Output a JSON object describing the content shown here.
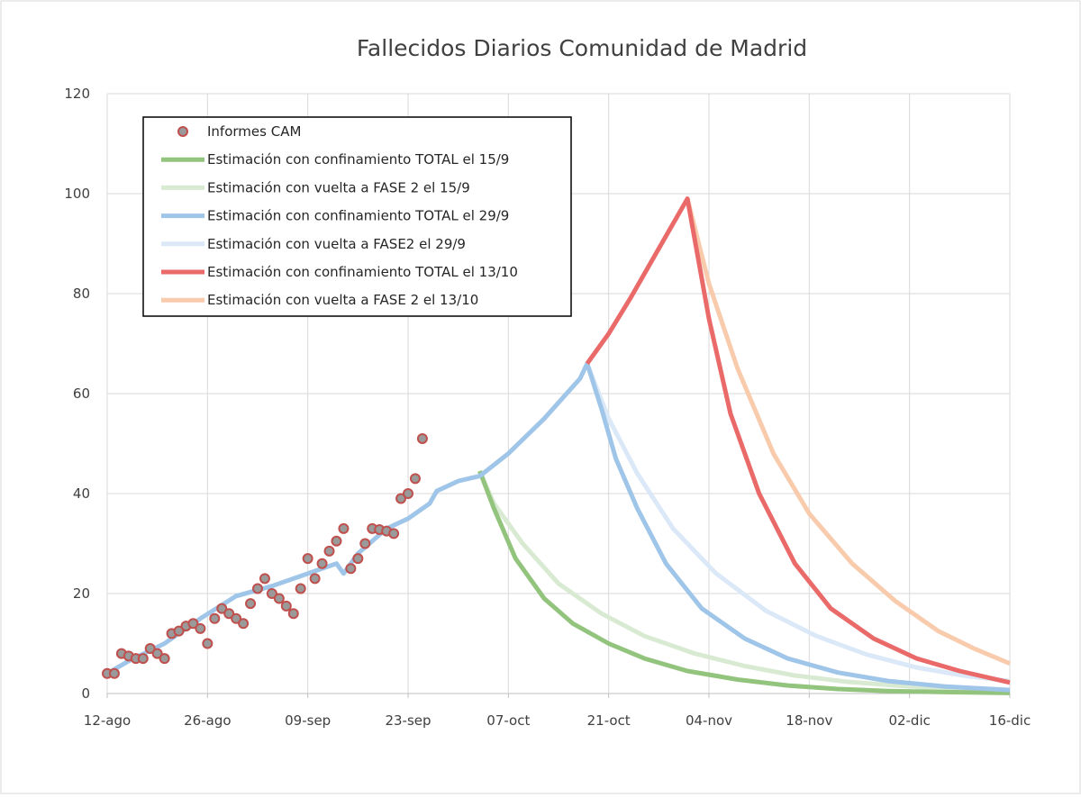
{
  "chart_data": {
    "type": "line",
    "title": "Fallecidos Diarios Comunidad de Madrid",
    "xlabel": "",
    "ylabel": "",
    "ylim": [
      0,
      120
    ],
    "yticks": [
      0,
      20,
      40,
      60,
      80,
      100,
      120
    ],
    "xlim": [
      "2020-08-12",
      "2020-12-16"
    ],
    "xticks": [
      "2020-08-12",
      "2020-08-26",
      "2020-09-09",
      "2020-09-23",
      "2020-10-07",
      "2020-10-21",
      "2020-11-04",
      "2020-11-18",
      "2020-12-02",
      "2020-12-16"
    ],
    "xtick_labels": [
      "12-ago",
      "26-ago",
      "09-sep",
      "23-sep",
      "07-oct",
      "21-oct",
      "04-nov",
      "18-nov",
      "02-dic",
      "16-dic"
    ],
    "grid": true,
    "legend_position": "top-left",
    "series": [
      {
        "name": "Informes CAM",
        "kind": "scatter",
        "color": "#c0504d",
        "fill": "#9a9a9a",
        "points": [
          [
            "2020-08-12",
            4
          ],
          [
            "2020-08-13",
            4
          ],
          [
            "2020-08-14",
            8
          ],
          [
            "2020-08-15",
            7.5
          ],
          [
            "2020-08-16",
            7
          ],
          [
            "2020-08-17",
            7
          ],
          [
            "2020-08-18",
            9
          ],
          [
            "2020-08-19",
            8
          ],
          [
            "2020-08-20",
            7
          ],
          [
            "2020-08-21",
            12
          ],
          [
            "2020-08-22",
            12.5
          ],
          [
            "2020-08-23",
            13.5
          ],
          [
            "2020-08-24",
            14
          ],
          [
            "2020-08-25",
            13
          ],
          [
            "2020-08-26",
            10
          ],
          [
            "2020-08-27",
            15
          ],
          [
            "2020-08-28",
            17
          ],
          [
            "2020-08-29",
            16
          ],
          [
            "2020-08-30",
            15
          ],
          [
            "2020-08-31",
            14
          ],
          [
            "2020-09-01",
            18
          ],
          [
            "2020-09-02",
            21
          ],
          [
            "2020-09-03",
            23
          ],
          [
            "2020-09-04",
            20
          ],
          [
            "2020-09-05",
            19
          ],
          [
            "2020-09-06",
            17.5
          ],
          [
            "2020-09-07",
            16
          ],
          [
            "2020-09-08",
            21
          ],
          [
            "2020-09-09",
            27
          ],
          [
            "2020-09-10",
            23
          ],
          [
            "2020-09-11",
            26
          ],
          [
            "2020-09-12",
            28.5
          ],
          [
            "2020-09-13",
            30.5
          ],
          [
            "2020-09-14",
            33
          ],
          [
            "2020-09-15",
            25
          ],
          [
            "2020-09-16",
            27
          ],
          [
            "2020-09-17",
            30
          ],
          [
            "2020-09-18",
            33
          ],
          [
            "2020-09-19",
            32.8
          ],
          [
            "2020-09-20",
            32.5
          ],
          [
            "2020-09-21",
            32
          ],
          [
            "2020-09-22",
            39
          ],
          [
            "2020-09-23",
            40
          ],
          [
            "2020-09-24",
            43
          ],
          [
            "2020-09-25",
            51
          ]
        ]
      },
      {
        "name": "Estimación con confinamiento TOTAL el 15/9",
        "kind": "line",
        "color": "#93c47d",
        "points": [
          [
            "2020-10-03",
            44.5
          ],
          [
            "2020-10-05",
            37
          ],
          [
            "2020-10-08",
            27
          ],
          [
            "2020-10-12",
            19
          ],
          [
            "2020-10-16",
            14
          ],
          [
            "2020-10-21",
            10
          ],
          [
            "2020-10-26",
            7
          ],
          [
            "2020-11-01",
            4.5
          ],
          [
            "2020-11-08",
            2.8
          ],
          [
            "2020-11-15",
            1.6
          ],
          [
            "2020-11-22",
            0.9
          ],
          [
            "2020-11-29",
            0.5
          ],
          [
            "2020-12-06",
            0.3
          ],
          [
            "2020-12-16",
            0.1
          ]
        ]
      },
      {
        "name": "Estimación con vuelta a FASE 2 el 15/9",
        "kind": "line",
        "color": "#d9ead3",
        "points": [
          [
            "2020-10-03",
            44.5
          ],
          [
            "2020-10-05",
            38
          ],
          [
            "2020-10-09",
            30
          ],
          [
            "2020-10-14",
            22
          ],
          [
            "2020-10-20",
            16
          ],
          [
            "2020-10-26",
            11.5
          ],
          [
            "2020-11-02",
            8
          ],
          [
            "2020-11-09",
            5.5
          ],
          [
            "2020-11-16",
            3.6
          ],
          [
            "2020-11-23",
            2.4
          ],
          [
            "2020-11-30",
            1.6
          ],
          [
            "2020-12-07",
            1.0
          ],
          [
            "2020-12-16",
            0.6
          ]
        ]
      },
      {
        "name": "Estimación con confinamiento TOTAL el 29/9",
        "kind": "line",
        "color": "#9fc5e8",
        "points": [
          [
            "2020-08-12",
            4
          ],
          [
            "2020-08-15",
            6.5
          ],
          [
            "2020-08-20",
            10
          ],
          [
            "2020-08-25",
            15
          ],
          [
            "2020-08-30",
            19.5
          ],
          [
            "2020-09-04",
            21.5
          ],
          [
            "2020-09-08",
            23.5
          ],
          [
            "2020-09-13",
            26
          ],
          [
            "2020-09-14",
            24
          ],
          [
            "2020-09-16",
            28
          ],
          [
            "2020-09-20",
            33
          ],
          [
            "2020-09-23",
            35
          ],
          [
            "2020-09-26",
            38
          ],
          [
            "2020-09-27",
            40.5
          ],
          [
            "2020-09-30",
            42.5
          ],
          [
            "2020-10-03",
            43.5
          ],
          [
            "2020-10-07",
            48
          ],
          [
            "2020-10-12",
            55
          ],
          [
            "2020-10-17",
            63
          ],
          [
            "2020-10-18",
            66
          ],
          [
            "2020-10-20",
            57
          ],
          [
            "2020-10-22",
            47
          ],
          [
            "2020-10-25",
            37
          ],
          [
            "2020-10-29",
            26
          ],
          [
            "2020-11-03",
            17
          ],
          [
            "2020-11-09",
            11
          ],
          [
            "2020-11-15",
            7
          ],
          [
            "2020-11-22",
            4.2
          ],
          [
            "2020-11-29",
            2.5
          ],
          [
            "2020-12-07",
            1.4
          ],
          [
            "2020-12-16",
            0.7
          ]
        ]
      },
      {
        "name": "Estimación con vuelta a FASE2 el 29/9",
        "kind": "line",
        "color": "#dbe8f7",
        "points": [
          [
            "2020-10-18",
            66
          ],
          [
            "2020-10-21",
            55
          ],
          [
            "2020-10-25",
            44
          ],
          [
            "2020-10-30",
            33
          ],
          [
            "2020-11-05",
            24
          ],
          [
            "2020-11-12",
            16.5
          ],
          [
            "2020-11-19",
            11.5
          ],
          [
            "2020-11-26",
            7.8
          ],
          [
            "2020-12-03",
            5.2
          ],
          [
            "2020-12-10",
            3.5
          ],
          [
            "2020-12-16",
            2.5
          ]
        ]
      },
      {
        "name": "Estimación con confinamiento TOTAL el 13/10",
        "kind": "line",
        "color": "#ea6a6a",
        "points": [
          [
            "2020-10-18",
            66
          ],
          [
            "2020-10-21",
            72
          ],
          [
            "2020-10-24",
            79
          ],
          [
            "2020-10-28",
            89
          ],
          [
            "2020-11-01",
            99
          ],
          [
            "2020-11-04",
            75
          ],
          [
            "2020-11-07",
            56
          ],
          [
            "2020-11-11",
            40
          ],
          [
            "2020-11-16",
            26
          ],
          [
            "2020-11-21",
            17
          ],
          [
            "2020-11-27",
            11
          ],
          [
            "2020-12-03",
            7
          ],
          [
            "2020-12-09",
            4.5
          ],
          [
            "2020-12-16",
            2.2
          ]
        ]
      },
      {
        "name": "Estimación con vuelta a FASE 2 el 13/10",
        "kind": "line",
        "color": "#f9cbad",
        "points": [
          [
            "2020-11-01",
            99
          ],
          [
            "2020-11-04",
            82
          ],
          [
            "2020-11-08",
            65
          ],
          [
            "2020-11-13",
            48
          ],
          [
            "2020-11-18",
            36
          ],
          [
            "2020-11-24",
            26
          ],
          [
            "2020-11-30",
            18.5
          ],
          [
            "2020-12-06",
            12.5
          ],
          [
            "2020-12-11",
            9
          ],
          [
            "2020-12-16",
            6
          ]
        ]
      }
    ]
  }
}
